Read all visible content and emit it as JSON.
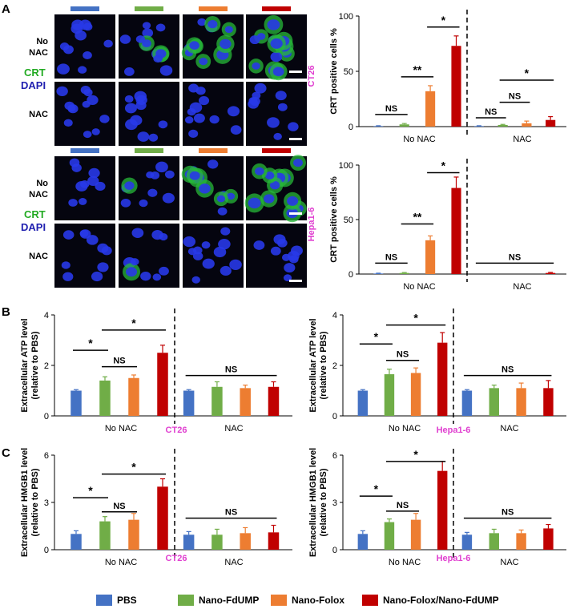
{
  "panel_labels": {
    "a": "A",
    "b": "B",
    "c": "C"
  },
  "colors": {
    "pbs": "#4472C4",
    "fdump": "#70AD47",
    "folox": "#ED7D31",
    "combo": "#C00000",
    "cell_line": "#E040D0",
    "crt": "#22AA22",
    "dapi": "#2020B0"
  },
  "micro": {
    "row_no_nac": "No\nNAC",
    "row_nac": "NAC",
    "crt_label": "CRT",
    "dapi_label": "DAPI"
  },
  "legend": {
    "items": [
      {
        "key": "pbs",
        "label": "PBS"
      },
      {
        "key": "fdump",
        "label": "Nano-FdUMP"
      },
      {
        "key": "folox",
        "label": "Nano-Folox"
      },
      {
        "key": "combo",
        "label": "Nano-Folox/Nano-FdUMP"
      }
    ]
  },
  "chart_data": [
    {
      "type": "bar",
      "id": "crt_ct26",
      "cell_line": "CT26",
      "ylabel": "CRT positive cells %",
      "ylim": [
        0,
        100
      ],
      "yticks": [
        0,
        50,
        100
      ],
      "groups": [
        "No NAC",
        "NAC"
      ],
      "series": [
        {
          "key": "pbs",
          "name": "PBS",
          "values": [
            0.5,
            0.5
          ],
          "errors": [
            0.3,
            0.3
          ]
        },
        {
          "key": "fdump",
          "name": "Nano-FdUMP",
          "values": [
            2,
            1.5
          ],
          "errors": [
            0.8,
            0.5
          ]
        },
        {
          "key": "folox",
          "name": "Nano-Folox",
          "values": [
            32,
            3
          ],
          "errors": [
            5,
            2
          ]
        },
        {
          "key": "combo",
          "name": "Nano-Folox/Nano-FdUMP",
          "values": [
            73,
            6
          ],
          "errors": [
            9,
            3
          ]
        }
      ],
      "annotations": [
        {
          "text": "NS",
          "from": 0,
          "to": 1,
          "y": 11
        },
        {
          "text": "**",
          "from": 1,
          "to": 2,
          "y": 45
        },
        {
          "text": "*",
          "from": 2,
          "to": 3,
          "y": 90
        },
        {
          "text": "NS",
          "from": 4,
          "to": 5,
          "y": 8
        },
        {
          "text": "NS",
          "from": 5,
          "to": 6,
          "y": 22
        },
        {
          "text": "*",
          "from": 5,
          "to": 7,
          "y": 42
        }
      ]
    },
    {
      "type": "bar",
      "id": "crt_hepa",
      "cell_line": "Hepa1-6",
      "ylabel": "CRT positive cells %",
      "ylim": [
        0,
        100
      ],
      "yticks": [
        0,
        50,
        100
      ],
      "groups": [
        "No NAC",
        "NAC"
      ],
      "series": [
        {
          "key": "pbs",
          "name": "PBS",
          "values": [
            0.5,
            0
          ],
          "errors": [
            0.3,
            0
          ]
        },
        {
          "key": "fdump",
          "name": "Nano-FdUMP",
          "values": [
            1,
            0
          ],
          "errors": [
            0.4,
            0
          ]
        },
        {
          "key": "folox",
          "name": "Nano-Folox",
          "values": [
            31,
            0
          ],
          "errors": [
            4,
            0
          ]
        },
        {
          "key": "combo",
          "name": "Nano-Folox/Nano-FdUMP",
          "values": [
            79,
            1
          ],
          "errors": [
            10,
            0.5
          ]
        }
      ],
      "annotations": [
        {
          "text": "NS",
          "from": 0,
          "to": 1,
          "y": 10
        },
        {
          "text": "**",
          "from": 1,
          "to": 2,
          "y": 46
        },
        {
          "text": "*",
          "from": 2,
          "to": 3,
          "y": 93
        },
        {
          "text": "NS",
          "from": 4,
          "to": 7,
          "y": 10
        }
      ]
    },
    {
      "type": "bar",
      "id": "atp_ct26",
      "cell_line": "CT26",
      "ylabel": "Extracellular ATP level\n(relative to PBS)",
      "ylim": [
        0,
        4
      ],
      "yticks": [
        0,
        2,
        4
      ],
      "groups": [
        "No NAC",
        "NAC"
      ],
      "series": [
        {
          "key": "pbs",
          "name": "PBS",
          "values": [
            1,
            1
          ],
          "errors": [
            0.04,
            0.04
          ]
        },
        {
          "key": "fdump",
          "name": "Nano-FdUMP",
          "values": [
            1.4,
            1.15
          ],
          "errors": [
            0.15,
            0.2
          ]
        },
        {
          "key": "folox",
          "name": "Nano-Folox",
          "values": [
            1.5,
            1.1
          ],
          "errors": [
            0.12,
            0.12
          ]
        },
        {
          "key": "combo",
          "name": "Nano-Folox/Nano-FdUMP",
          "values": [
            2.5,
            1.15
          ],
          "errors": [
            0.3,
            0.2
          ]
        }
      ],
      "annotations": [
        {
          "text": "*",
          "from": 0,
          "to": 1,
          "y": 2.6
        },
        {
          "text": "NS",
          "from": 1,
          "to": 2,
          "y": 1.95
        },
        {
          "text": "*",
          "from": 1,
          "to": 3,
          "y": 3.4
        },
        {
          "text": "NS",
          "from": 4,
          "to": 7,
          "y": 1.6
        }
      ]
    },
    {
      "type": "bar",
      "id": "atp_hepa",
      "cell_line": "Hepa1-6",
      "ylabel": "Extracellular ATP level\n(relative to PBS)",
      "ylim": [
        0,
        4
      ],
      "yticks": [
        0,
        2,
        4
      ],
      "groups": [
        "No NAC",
        "NAC"
      ],
      "series": [
        {
          "key": "pbs",
          "name": "PBS",
          "values": [
            1,
            1
          ],
          "errors": [
            0.04,
            0.04
          ]
        },
        {
          "key": "fdump",
          "name": "Nano-FdUMP",
          "values": [
            1.65,
            1.1
          ],
          "errors": [
            0.2,
            0.12
          ]
        },
        {
          "key": "folox",
          "name": "Nano-Folox",
          "values": [
            1.7,
            1.1
          ],
          "errors": [
            0.2,
            0.2
          ]
        },
        {
          "key": "combo",
          "name": "Nano-Folox/Nano-FdUMP",
          "values": [
            2.9,
            1.1
          ],
          "errors": [
            0.4,
            0.3
          ]
        }
      ],
      "annotations": [
        {
          "text": "*",
          "from": 0,
          "to": 1,
          "y": 2.85
        },
        {
          "text": "NS",
          "from": 1,
          "to": 2,
          "y": 2.2
        },
        {
          "text": "*",
          "from": 1,
          "to": 3,
          "y": 3.6
        },
        {
          "text": "NS",
          "from": 4,
          "to": 7,
          "y": 1.6
        }
      ]
    },
    {
      "type": "bar",
      "id": "hmgb1_ct26",
      "cell_line": "CT26",
      "ylabel": "Extracellular HMGB1 level\n(relative to PBS)",
      "ylim": [
        0,
        6
      ],
      "yticks": [
        0,
        3,
        6
      ],
      "groups": [
        "No NAC",
        "NAC"
      ],
      "series": [
        {
          "key": "pbs",
          "name": "PBS",
          "values": [
            1,
            0.95
          ],
          "errors": [
            0.2,
            0.2
          ]
        },
        {
          "key": "fdump",
          "name": "Nano-FdUMP",
          "values": [
            1.8,
            0.95
          ],
          "errors": [
            0.3,
            0.35
          ]
        },
        {
          "key": "folox",
          "name": "Nano-Folox",
          "values": [
            1.9,
            1.05
          ],
          "errors": [
            0.4,
            0.35
          ]
        },
        {
          "key": "combo",
          "name": "Nano-Folox/Nano-FdUMP",
          "values": [
            4.0,
            1.1
          ],
          "errors": [
            0.5,
            0.45
          ]
        }
      ],
      "annotations": [
        {
          "text": "*",
          "from": 0,
          "to": 1,
          "y": 3.3
        },
        {
          "text": "NS",
          "from": 1,
          "to": 2,
          "y": 2.4
        },
        {
          "text": "*",
          "from": 1,
          "to": 3,
          "y": 4.8
        },
        {
          "text": "NS",
          "from": 4,
          "to": 7,
          "y": 2.0
        }
      ]
    },
    {
      "type": "bar",
      "id": "hmgb1_hepa",
      "cell_line": "Hepa1-6",
      "ylabel": "Extracellular HMGB1 level\n(relative to PBS)",
      "ylim": [
        0,
        6
      ],
      "yticks": [
        0,
        3,
        6
      ],
      "groups": [
        "No NAC",
        "NAC"
      ],
      "series": [
        {
          "key": "pbs",
          "name": "PBS",
          "values": [
            1,
            0.95
          ],
          "errors": [
            0.2,
            0.15
          ]
        },
        {
          "key": "fdump",
          "name": "Nano-FdUMP",
          "values": [
            1.75,
            1.05
          ],
          "errors": [
            0.2,
            0.25
          ]
        },
        {
          "key": "folox",
          "name": "Nano-Folox",
          "values": [
            1.9,
            1.05
          ],
          "errors": [
            0.4,
            0.2
          ]
        },
        {
          "key": "combo",
          "name": "Nano-Folox/Nano-FdUMP",
          "values": [
            5.0,
            1.35
          ],
          "errors": [
            0.6,
            0.25
          ]
        }
      ],
      "annotations": [
        {
          "text": "*",
          "from": 0,
          "to": 1,
          "y": 3.4
        },
        {
          "text": "NS",
          "from": 1,
          "to": 2,
          "y": 2.45
        },
        {
          "text": "*",
          "from": 1,
          "to": 3,
          "y": 5.6
        },
        {
          "text": "NS",
          "from": 4,
          "to": 7,
          "y": 2.0
        }
      ]
    }
  ]
}
